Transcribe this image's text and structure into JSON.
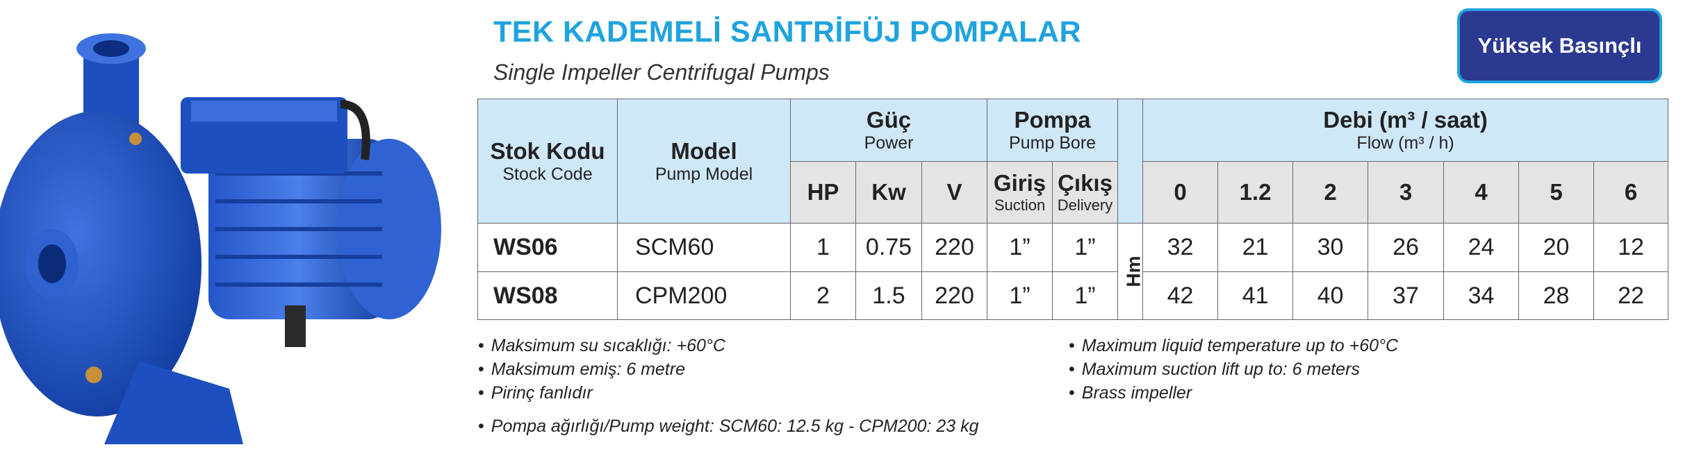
{
  "header": {
    "title": "TEK KADEMELİ SANTRİFÜJ POMPALAR",
    "subtitle": "Single Impeller Centrifugal Pumps",
    "badge": "Yüksek Basınçlı"
  },
  "table": {
    "stock_code": {
      "tr": "Stok Kodu",
      "en": "Stock Code"
    },
    "model": {
      "tr": "Model",
      "en": "Pump Model"
    },
    "power": {
      "tr": "Güç",
      "en": "Power",
      "columns": [
        "HP",
        "Kw",
        "V"
      ]
    },
    "bore": {
      "tr": "Pompa",
      "en": "Pump Bore",
      "columns": [
        {
          "tr": "Giriş",
          "en": "Suction"
        },
        {
          "tr": "Çıkış",
          "en": "Delivery"
        }
      ]
    },
    "flow": {
      "tr": "Debi (m³ / saat)",
      "en": "Flow (m³ / h)",
      "columns": [
        "0",
        "1.2",
        "2",
        "3",
        "4",
        "5",
        "6"
      ]
    },
    "head_unit": "Hm",
    "rows": [
      [
        "WS06",
        "SCM60",
        "1",
        "0.75",
        "220",
        "1”",
        "1”",
        "32",
        "21",
        "30",
        "26",
        "24",
        "20",
        "12"
      ],
      [
        "WS08",
        "CPM200",
        "2",
        "1.5",
        "220",
        "1”",
        "1”",
        "42",
        "41",
        "40",
        "37",
        "34",
        "28",
        "22"
      ]
    ]
  },
  "notes": {
    "left": [
      "Maksimum su sıcaklığı: +60°C",
      "Maksimum emiş: 6 metre",
      "Pirinç fanlıdır"
    ],
    "right": [
      "Maximum liquid temperature  up to +60°C",
      "Maximum suction lift up to: 6 meters",
      "Brass impeller"
    ],
    "bottom": "Pompa ağırlığı/Pump weight: SCM60: 12.5 kg - CPM200: 23 kg"
  }
}
